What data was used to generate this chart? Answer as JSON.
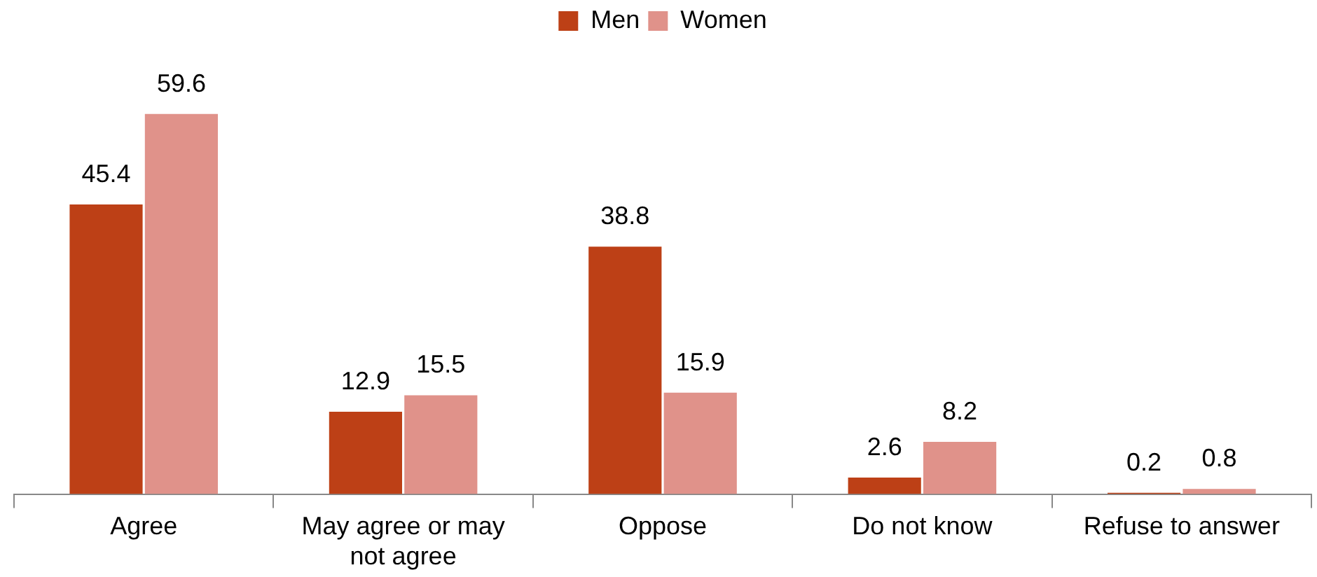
{
  "chart_data": {
    "type": "bar",
    "categories": [
      "Agree",
      "May agree or may not agree",
      "Oppose",
      "Do not know",
      "Refuse to answer"
    ],
    "series": [
      {
        "name": "Men",
        "color": "#bd4016",
        "values": [
          45.4,
          12.9,
          38.8,
          2.6,
          0.2
        ]
      },
      {
        "name": "Women",
        "color": "#e0928a",
        "values": [
          59.6,
          15.5,
          15.9,
          8.2,
          0.8
        ]
      }
    ],
    "data_labels": true,
    "legend": "top",
    "grid": false
  }
}
